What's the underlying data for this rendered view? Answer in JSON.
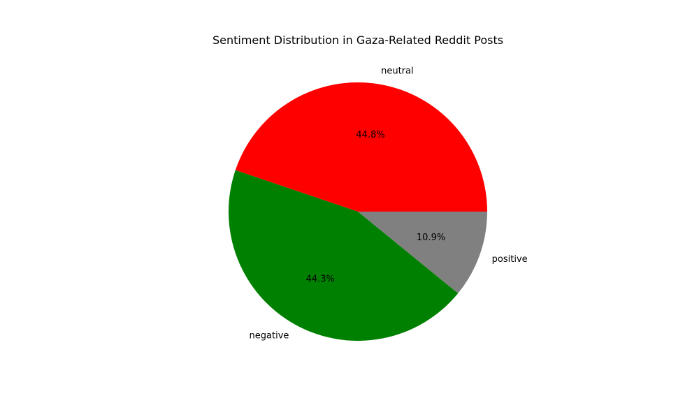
{
  "chart_data": {
    "type": "pie",
    "title": "Sentiment Distribution in Gaza-Related Reddit Posts",
    "start_angle_deg": 0,
    "direction": "counterclockwise",
    "slices": [
      {
        "label": "neutral",
        "value": 44.8,
        "pct_label": "44.8%",
        "color": "#ff0000"
      },
      {
        "label": "negative",
        "value": 44.3,
        "pct_label": "44.3%",
        "color": "#008000"
      },
      {
        "label": "positive",
        "value": 10.9,
        "pct_label": "10.9%",
        "color": "#808080"
      }
    ]
  }
}
